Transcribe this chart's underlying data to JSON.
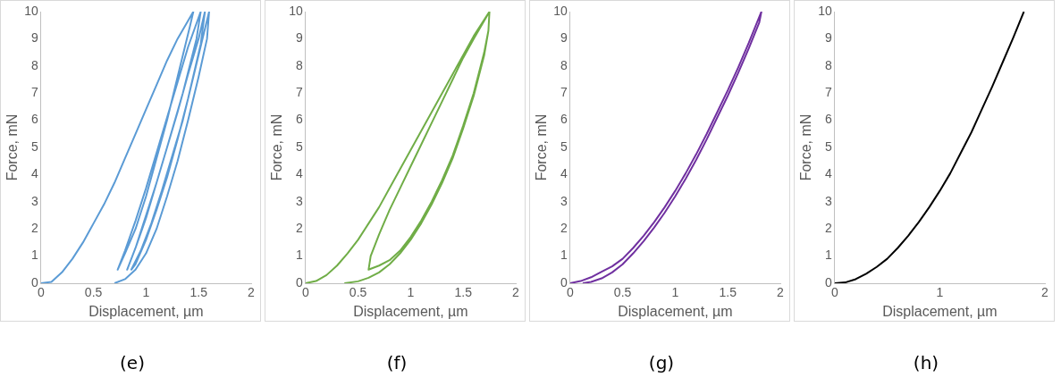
{
  "chart_data": [
    {
      "type": "line",
      "xlabel": "Displacement, µm",
      "ylabel": "Force, mN",
      "annotations": [
        "(e)"
      ],
      "xlim": [
        0,
        2
      ],
      "xticks": [
        0,
        0.5,
        1,
        1.5,
        2
      ],
      "ylim": [
        0,
        10
      ],
      "yticks": [
        0,
        1,
        2,
        3,
        4,
        5,
        6,
        7,
        8,
        9,
        10
      ],
      "grid": false,
      "legend": false,
      "marker": "none",
      "color": "#5b9bd5",
      "x": [
        0,
        0.1,
        0.2,
        0.3,
        0.4,
        0.5,
        0.6,
        0.7,
        0.8,
        0.9,
        1.0,
        1.1,
        1.2,
        1.3,
        1.45,
        1.42,
        1.3,
        1.2,
        1.1,
        1.0,
        0.9,
        0.8,
        0.73,
        0.8,
        0.9,
        1.0,
        1.1,
        1.2,
        1.3,
        1.4,
        1.52,
        1.48,
        1.35,
        1.2,
        1.1,
        1.0,
        0.9,
        0.82,
        0.9,
        1.0,
        1.1,
        1.2,
        1.3,
        1.4,
        1.5,
        1.56,
        1.52,
        1.4,
        1.3,
        1.2,
        1.1,
        1.0,
        0.9,
        0.86,
        0.95,
        1.05,
        1.15,
        1.25,
        1.35,
        1.45,
        1.55,
        1.6,
        1.58,
        1.5,
        1.4,
        1.3,
        1.2,
        1.1,
        1.0,
        0.9,
        0.8,
        0.7
      ],
      "values": [
        0,
        0.05,
        0.4,
        0.9,
        1.5,
        2.2,
        2.9,
        3.7,
        4.6,
        5.5,
        6.4,
        7.3,
        8.2,
        9.0,
        10,
        9.5,
        7.6,
        6.0,
        4.6,
        3.2,
        2.0,
        1.1,
        0.5,
        1.2,
        2.3,
        3.5,
        4.8,
        6.1,
        7.4,
        8.7,
        10,
        9.0,
        7.0,
        5.0,
        3.7,
        2.4,
        1.3,
        0.5,
        1.3,
        2.5,
        3.7,
        5.0,
        6.3,
        7.7,
        9.0,
        10,
        8.8,
        6.8,
        5.3,
        3.9,
        2.7,
        1.6,
        0.7,
        0.5,
        1.2,
        2.2,
        3.4,
        4.7,
        6.0,
        7.6,
        9.2,
        10,
        9.0,
        7.6,
        6.0,
        4.5,
        3.2,
        2.0,
        1.1,
        0.5,
        0.15,
        0
      ]
    },
    {
      "type": "line",
      "xlabel": "Displacement, µm",
      "ylabel": "Force, mN",
      "annotations": [
        "(f)"
      ],
      "xlim": [
        0,
        2
      ],
      "xticks": [
        0,
        0.5,
        1,
        1.5,
        2
      ],
      "ylim": [
        0,
        10
      ],
      "yticks": [
        0,
        1,
        2,
        3,
        4,
        5,
        6,
        7,
        8,
        9,
        10
      ],
      "grid": false,
      "legend": false,
      "marker": "none",
      "color": "#70ad47",
      "x": [
        0,
        0.1,
        0.2,
        0.3,
        0.4,
        0.5,
        0.6,
        0.7,
        0.8,
        0.9,
        1.0,
        1.1,
        1.2,
        1.3,
        1.4,
        1.5,
        1.6,
        1.75,
        1.74,
        1.7,
        1.6,
        1.5,
        1.4,
        1.3,
        1.2,
        1.1,
        1.0,
        0.9,
        0.8,
        0.7,
        0.6,
        0.62,
        0.7,
        0.8,
        0.9,
        1.0,
        1.1,
        1.2,
        1.3,
        1.4,
        1.5,
        1.6,
        1.75,
        1.74,
        1.7,
        1.6,
        1.5,
        1.4,
        1.3,
        1.2,
        1.1,
        1.0,
        0.9,
        0.8,
        0.7,
        0.6,
        0.5,
        0.37
      ],
      "values": [
        0,
        0.08,
        0.3,
        0.65,
        1.1,
        1.6,
        2.2,
        2.8,
        3.5,
        4.2,
        4.9,
        5.6,
        6.3,
        7.0,
        7.7,
        8.4,
        9.1,
        10,
        9.3,
        8.5,
        7.0,
        5.8,
        4.7,
        3.8,
        3.0,
        2.3,
        1.7,
        1.2,
        0.85,
        0.65,
        0.5,
        1.0,
        1.8,
        2.7,
        3.5,
        4.3,
        5.1,
        5.9,
        6.7,
        7.5,
        8.3,
        9.0,
        10,
        9.3,
        8.4,
        6.9,
        5.7,
        4.6,
        3.7,
        2.9,
        2.2,
        1.6,
        1.1,
        0.7,
        0.4,
        0.2,
        0.07,
        0
      ]
    },
    {
      "type": "line",
      "xlabel": "Displacement, µm",
      "ylabel": "Force, mN",
      "annotations": [
        "(g)"
      ],
      "xlim": [
        0,
        2
      ],
      "xticks": [
        0,
        0.5,
        1,
        1.5,
        2
      ],
      "ylim": [
        0,
        10
      ],
      "yticks": [
        0,
        1,
        2,
        3,
        4,
        5,
        6,
        7,
        8,
        9,
        10
      ],
      "grid": false,
      "legend": false,
      "marker": "none",
      "color": "#7030a0",
      "x": [
        0,
        0.1,
        0.2,
        0.3,
        0.4,
        0.5,
        0.6,
        0.7,
        0.8,
        0.9,
        1.0,
        1.1,
        1.2,
        1.3,
        1.4,
        1.5,
        1.6,
        1.7,
        1.82,
        1.8,
        1.7,
        1.6,
        1.5,
        1.4,
        1.3,
        1.2,
        1.1,
        1.0,
        0.9,
        0.8,
        0.7,
        0.6,
        0.5,
        0.4,
        0.3,
        0.2,
        0.12
      ],
      "values": [
        0,
        0.08,
        0.22,
        0.42,
        0.62,
        0.9,
        1.3,
        1.75,
        2.25,
        2.8,
        3.4,
        4.05,
        4.75,
        5.5,
        6.3,
        7.1,
        7.95,
        8.85,
        10,
        9.6,
        8.65,
        7.75,
        6.9,
        6.1,
        5.3,
        4.55,
        3.85,
        3.2,
        2.6,
        2.05,
        1.55,
        1.1,
        0.7,
        0.4,
        0.18,
        0.05,
        0
      ]
    },
    {
      "type": "line",
      "xlabel": "Displacement, µm",
      "ylabel": "Force, mN",
      "annotations": [
        "(h)"
      ],
      "xlim": [
        0,
        2
      ],
      "xticks": [
        0,
        1,
        2
      ],
      "ylim": [
        0,
        10
      ],
      "yticks": [
        0,
        1,
        2,
        3,
        4,
        5,
        6,
        7,
        8,
        9,
        10
      ],
      "grid": false,
      "legend": false,
      "marker": "none",
      "color": "#000000",
      "x": [
        0,
        0.1,
        0.2,
        0.3,
        0.4,
        0.5,
        0.6,
        0.7,
        0.8,
        0.9,
        1.0,
        1.1,
        1.2,
        1.3,
        1.4,
        1.5,
        1.6,
        1.7,
        1.8
      ],
      "values": [
        0,
        0.03,
        0.15,
        0.35,
        0.6,
        0.9,
        1.3,
        1.75,
        2.25,
        2.8,
        3.4,
        4.05,
        4.8,
        5.55,
        6.4,
        7.25,
        8.15,
        9.05,
        10
      ]
    }
  ]
}
